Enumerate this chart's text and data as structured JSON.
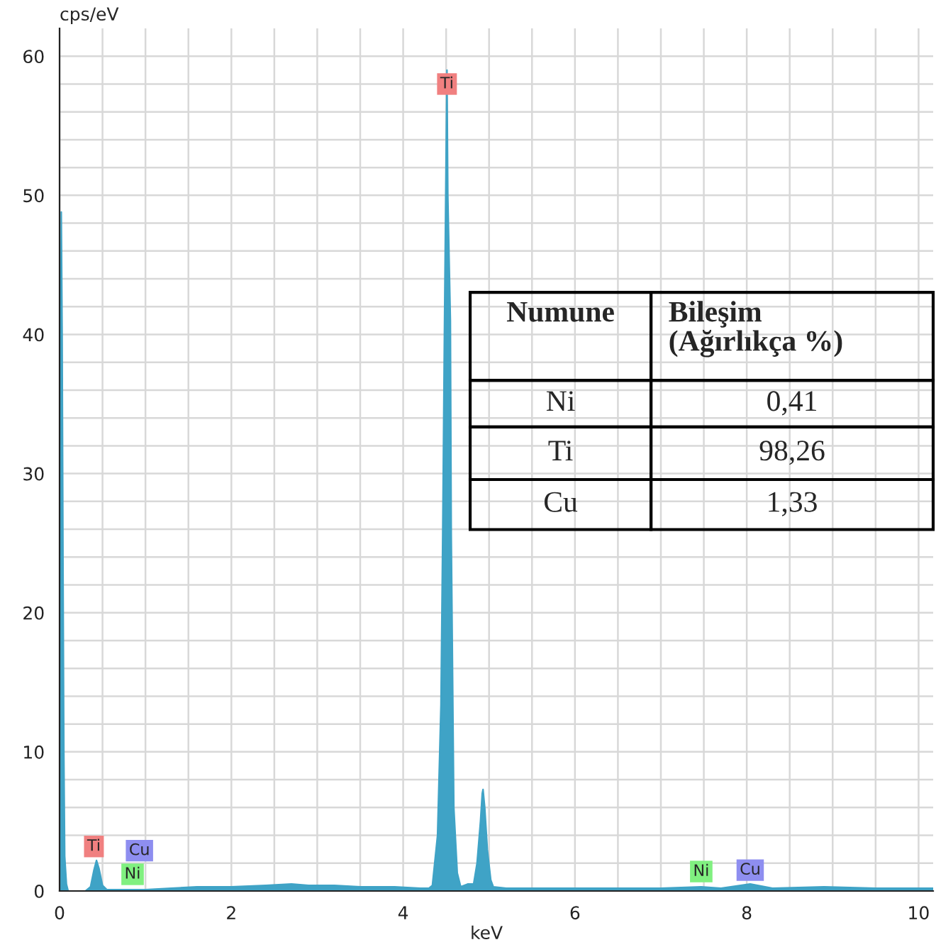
{
  "chart_data": {
    "type": "area",
    "xlabel": "keV",
    "ylabel": "cps/eV",
    "x": [
      0.0,
      0.01,
      0.02,
      0.03,
      0.04,
      0.05,
      0.06,
      0.08,
      0.1,
      0.3,
      0.36,
      0.4,
      0.43,
      0.46,
      0.5,
      0.55,
      0.7,
      1.0,
      1.3,
      1.6,
      2.0,
      2.4,
      2.7,
      2.9,
      3.2,
      3.5,
      3.9,
      4.2,
      4.3,
      4.34,
      4.4,
      4.44,
      4.46,
      4.48,
      4.5,
      4.51,
      4.52,
      4.55,
      4.56,
      4.59,
      4.63,
      4.67,
      4.75,
      4.82,
      4.86,
      4.9,
      4.92,
      4.93,
      4.95,
      4.98,
      5.02,
      5.05,
      5.2,
      6.0,
      6.5,
      7.0,
      7.47,
      7.7,
      8.04,
      8.3,
      8.9,
      9.5,
      10.17
    ],
    "series": [
      {
        "color": "#3fa3c6",
        "values": [
          0.0,
          30.0,
          48.8,
          40.0,
          24.0,
          10.0,
          2.5,
          0.5,
          0.0,
          0.0,
          0.3,
          1.5,
          2.2,
          1.6,
          0.4,
          0.1,
          0.1,
          0.1,
          0.2,
          0.3,
          0.3,
          0.4,
          0.5,
          0.4,
          0.4,
          0.3,
          0.3,
          0.2,
          0.2,
          0.4,
          4.0,
          13.4,
          25.5,
          40.0,
          53.0,
          59.0,
          50.0,
          41.0,
          25.7,
          6.0,
          1.3,
          0.3,
          0.5,
          0.5,
          2.0,
          5.0,
          7.0,
          7.3,
          6.0,
          3.0,
          0.8,
          0.3,
          0.2,
          0.2,
          0.2,
          0.2,
          0.3,
          0.2,
          0.5,
          0.2,
          0.3,
          0.2,
          0.2
        ]
      }
    ],
    "xlim": [
      0,
      10.17
    ],
    "ylim": [
      0,
      62
    ],
    "xticks": [
      0,
      {
        "value": 0.5,
        "label": null
      },
      {
        "value": 1,
        "label": null
      },
      {
        "value": 1.5,
        "label": null
      },
      2,
      {
        "value": 2.5,
        "label": null
      },
      {
        "value": 3,
        "label": null
      },
      {
        "value": 3.5,
        "label": null
      },
      4,
      {
        "value": 4.5,
        "label": null
      },
      {
        "value": 5,
        "label": null
      },
      {
        "value": 5.5,
        "label": null
      },
      6,
      {
        "value": 6.5,
        "label": null
      },
      {
        "value": 7,
        "label": null
      },
      {
        "value": 7.5,
        "label": null
      },
      8,
      {
        "value": 8.5,
        "label": null
      },
      {
        "value": 9,
        "label": null
      },
      {
        "value": 9.5,
        "label": null
      },
      10
    ],
    "yticks": [
      0,
      {
        "value": 2,
        "label": null
      },
      {
        "value": 4,
        "label": null
      },
      {
        "value": 6,
        "label": null
      },
      {
        "value": 8,
        "label": null
      },
      10,
      {
        "value": 12,
        "label": null
      },
      {
        "value": 14,
        "label": null
      },
      {
        "value": 16,
        "label": null
      },
      {
        "value": 18,
        "label": null
      },
      20,
      {
        "value": 22,
        "label": null
      },
      {
        "value": 24,
        "label": null
      },
      {
        "value": 26,
        "label": null
      },
      {
        "value": 28,
        "label": null
      },
      30,
      {
        "value": 32,
        "label": null
      },
      {
        "value": 34,
        "label": null
      },
      {
        "value": 36,
        "label": null
      },
      {
        "value": 38,
        "label": null
      },
      40,
      {
        "value": 42,
        "label": null
      },
      {
        "value": 44,
        "label": null
      },
      {
        "value": 46,
        "label": null
      },
      {
        "value": 48,
        "label": null
      },
      50,
      {
        "value": 52,
        "label": null
      },
      {
        "value": 54,
        "label": null
      },
      {
        "value": 56,
        "label": null
      },
      {
        "value": 58,
        "label": null
      },
      60
    ],
    "grid": true,
    "annotations": [
      {
        "text": "Ti",
        "x": 0.4,
        "y": 3.2
      },
      {
        "text": "Cu",
        "x": 0.93,
        "y": 2.9
      },
      {
        "text": "Ni",
        "x": 0.85,
        "y": 1.2
      },
      {
        "text": "Ti",
        "x": 4.51,
        "y": 58
      },
      {
        "text": "Ni",
        "x": 7.47,
        "y": 1.4
      },
      {
        "text": "Cu",
        "x": 8.04,
        "y": 1.5
      },
      "Numune",
      "Bileşim\n(Ağırlıkça %)",
      "Ni",
      "0,41",
      "Ti",
      "98,26",
      "Cu",
      "1,33"
    ]
  }
}
